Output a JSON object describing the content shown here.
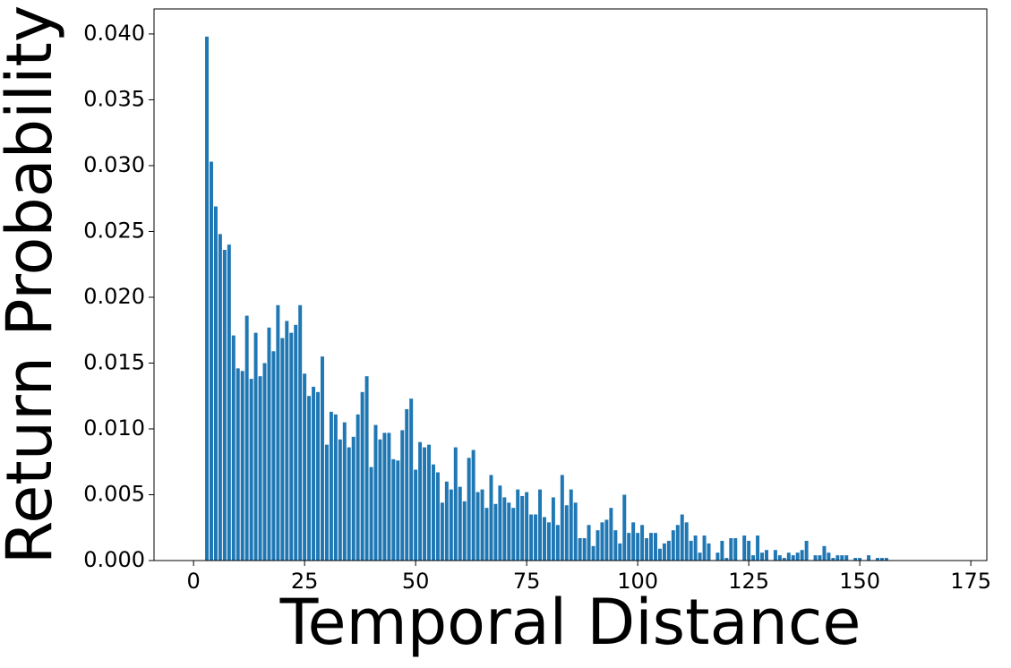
{
  "chart_data": {
    "type": "bar",
    "xlabel": "Temporal Distance",
    "ylabel": "Return Probability",
    "color": "#1f77b4",
    "x": [
      3,
      4,
      5,
      6,
      7,
      8,
      9,
      10,
      11,
      12,
      13,
      14,
      15,
      16,
      17,
      18,
      19,
      20,
      21,
      22,
      23,
      24,
      25,
      26,
      27,
      28,
      29,
      30,
      31,
      32,
      33,
      34,
      35,
      36,
      37,
      38,
      39,
      40,
      41,
      42,
      43,
      44,
      45,
      46,
      47,
      48,
      49,
      50,
      51,
      52,
      53,
      54,
      55,
      56,
      57,
      58,
      59,
      60,
      61,
      62,
      63,
      64,
      65,
      66,
      67,
      68,
      69,
      70,
      71,
      72,
      73,
      74,
      75,
      76,
      77,
      78,
      79,
      80,
      81,
      82,
      83,
      84,
      85,
      86,
      87,
      88,
      89,
      90,
      91,
      92,
      93,
      94,
      95,
      96,
      97,
      98,
      99,
      100,
      101,
      102,
      103,
      104,
      105,
      106,
      107,
      108,
      109,
      110,
      111,
      112,
      113,
      114,
      115,
      116,
      117,
      118,
      119,
      120,
      121,
      122,
      123,
      124,
      125,
      126,
      127,
      128,
      129,
      130,
      131,
      132,
      133,
      134,
      135,
      136,
      137,
      138,
      139,
      140,
      141,
      142,
      143,
      144,
      145,
      146,
      147,
      148,
      149,
      150,
      151,
      152,
      153,
      154,
      155,
      156
    ],
    "values": [
      0.0398,
      0.0303,
      0.0269,
      0.0248,
      0.0236,
      0.024,
      0.0171,
      0.0146,
      0.0144,
      0.0186,
      0.0138,
      0.0173,
      0.014,
      0.015,
      0.0177,
      0.0159,
      0.0194,
      0.0169,
      0.0182,
      0.0173,
      0.0179,
      0.0194,
      0.0142,
      0.0125,
      0.0132,
      0.0128,
      0.0155,
      0.0088,
      0.0113,
      0.0111,
      0.0092,
      0.0105,
      0.0086,
      0.0094,
      0.0111,
      0.0128,
      0.014,
      0.0071,
      0.0103,
      0.0092,
      0.0097,
      0.0097,
      0.0077,
      0.0076,
      0.0099,
      0.0115,
      0.0123,
      0.0069,
      0.009,
      0.0086,
      0.0088,
      0.0073,
      0.0067,
      0.0044,
      0.006,
      0.0054,
      0.0086,
      0.0056,
      0.0045,
      0.0078,
      0.0084,
      0.0052,
      0.0054,
      0.004,
      0.0065,
      0.0043,
      0.0057,
      0.0048,
      0.0044,
      0.004,
      0.0054,
      0.0049,
      0.0052,
      0.0035,
      0.0035,
      0.0054,
      0.0033,
      0.0029,
      0.0048,
      0.0027,
      0.0065,
      0.0042,
      0.0054,
      0.0044,
      0.0017,
      0.0017,
      0.0027,
      0.0011,
      0.0023,
      0.0029,
      0.0031,
      0.004,
      0.0023,
      0.0013,
      0.005,
      0.0021,
      0.0029,
      0.0021,
      0.0027,
      0.0017,
      0.0021,
      0.0021,
      0.0009,
      0.0013,
      0.0015,
      0.0023,
      0.0027,
      0.0035,
      0.0029,
      0.0015,
      0.0019,
      0.0006,
      0.0019,
      0.0013,
      0,
      0.0006,
      0.0015,
      0.0002,
      0.0017,
      0.0017,
      0,
      0.0019,
      0.0015,
      0.0004,
      0.0019,
      0.0006,
      0.0008,
      0,
      0.0008,
      0.0004,
      0.0002,
      0.0006,
      0.0004,
      0.0006,
      0.0008,
      0.0015,
      0,
      0.0004,
      0.0004,
      0.0011,
      0.0006,
      0.0002,
      0.0004,
      0.0004,
      0.0004,
      0,
      0.0002,
      0.0002,
      0,
      0.0004,
      0,
      0.0002,
      0.0002,
      0.0002
    ],
    "xlim": [
      -8.9,
      178.6
    ],
    "xticks": [
      0,
      25,
      50,
      75,
      100,
      125,
      150,
      175
    ],
    "ylim": [
      0,
      0.0419
    ],
    "yticks": [
      {
        "value": 0,
        "label": "0.000"
      },
      {
        "value": 0.005,
        "label": "0.005"
      },
      {
        "value": 0.01,
        "label": "0.010"
      },
      {
        "value": 0.015,
        "label": "0.015"
      },
      {
        "value": 0.02,
        "label": "0.020"
      },
      {
        "value": 0.025,
        "label": "0.025"
      },
      {
        "value": 0.03,
        "label": "0.030"
      },
      {
        "value": 0.035,
        "label": "0.035"
      },
      {
        "value": 0.04,
        "label": "0.040"
      }
    ],
    "bar_width": 0.8
  }
}
